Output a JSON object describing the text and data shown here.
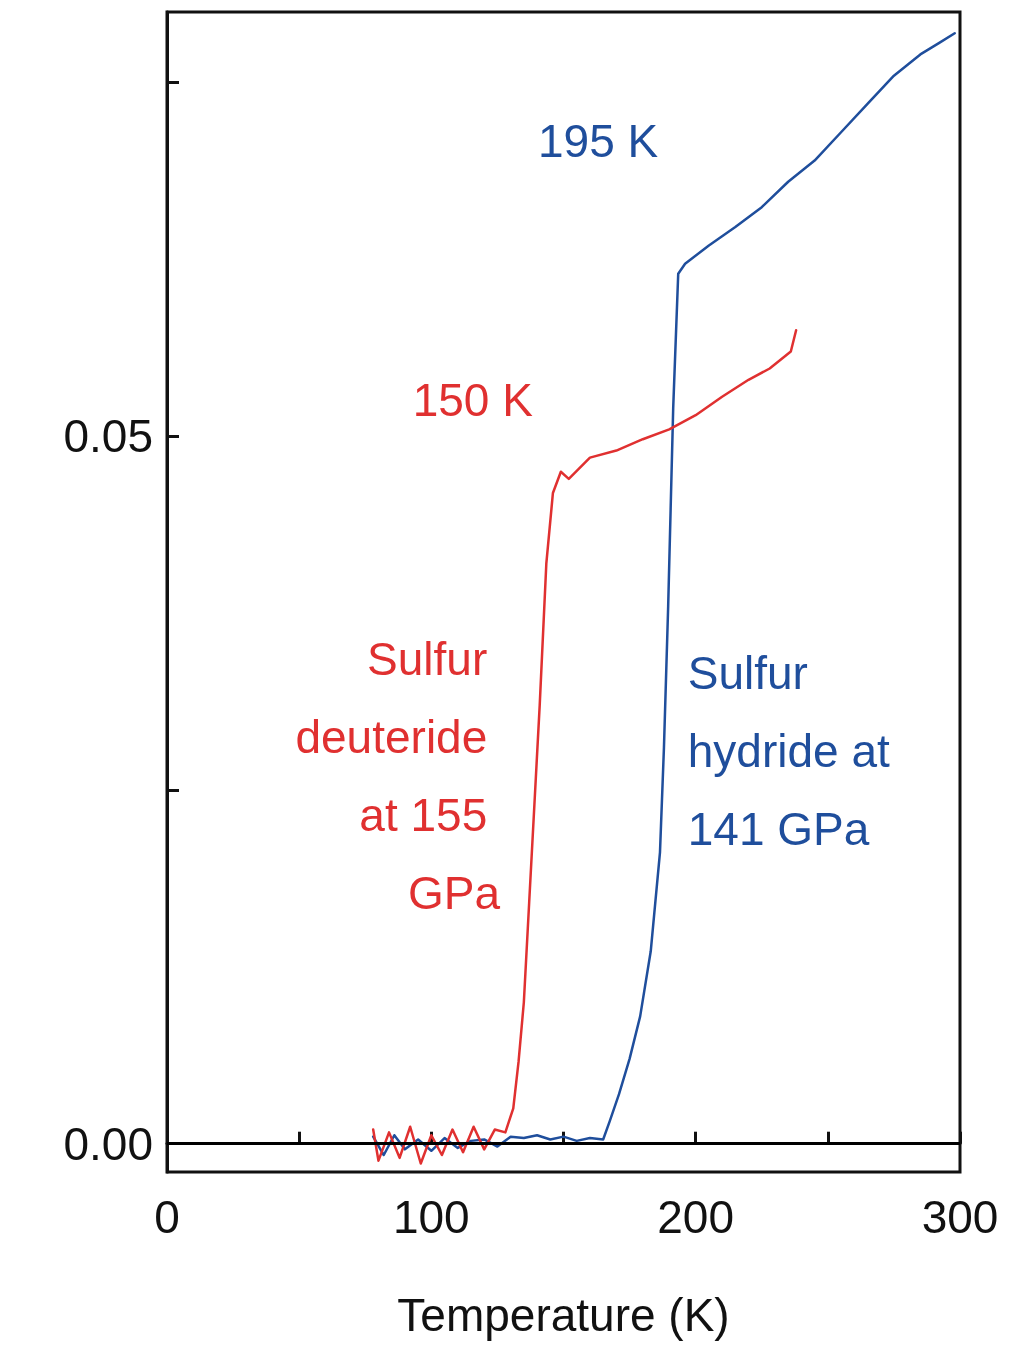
{
  "chart_data": {
    "type": "line",
    "xlabel": "Temperature (K)",
    "xlim": [
      0,
      300
    ],
    "xticks": [
      0,
      {
        "value": 50,
        "label": null
      },
      100,
      {
        "value": 150,
        "label": null
      },
      200,
      {
        "value": 250,
        "label": null
      },
      300
    ],
    "ylim": [
      -0.002,
      0.08
    ],
    "yticks": [
      {
        "value": 0,
        "label": "0.00"
      },
      {
        "value": 0.025,
        "label": null
      },
      {
        "value": 0.05,
        "label": "0.05"
      },
      {
        "value": 0.075,
        "label": null
      }
    ],
    "grid": false,
    "legend": false,
    "marker": "none",
    "line_style": "solid",
    "ref_lines": [
      {
        "axis": "y",
        "value": 0,
        "color": "#000000"
      }
    ],
    "annotations": [
      {
        "text": "195 K",
        "x": 193.4,
        "y": 0.0615
      },
      {
        "text": "150 K",
        "x": 146,
        "y": 0.046
      }
    ],
    "series": [
      {
        "name": "Sulfur hydride at 141 GPa",
        "color": "#1f4e9c",
        "x": [
          78,
          82,
          86,
          90,
          95,
          100,
          105,
          110,
          115,
          120,
          125,
          130,
          135,
          140,
          145,
          150,
          155,
          160,
          165,
          167.5,
          171,
          175,
          179,
          183,
          186.5,
          188,
          189.6,
          191.5,
          193.4,
          196,
          205,
          215,
          225,
          235,
          245,
          255,
          265,
          275,
          285,
          292,
          298
        ],
        "values": [
          0.0005,
          -0.0008,
          0.0006,
          -0.0004,
          0.0003,
          -0.0005,
          0.0004,
          -0.0003,
          0.0002,
          0.0003,
          -0.0002,
          0.0005,
          0.0004,
          0.0006,
          0.0003,
          0.0005,
          0.0002,
          0.0004,
          0.0003,
          0.0016,
          0.0035,
          0.006,
          0.009,
          0.0136,
          0.0206,
          0.028,
          0.038,
          0.052,
          0.0615,
          0.0622,
          0.0635,
          0.0648,
          0.0662,
          0.068,
          0.0695,
          0.0715,
          0.0735,
          0.0755,
          0.077,
          0.0778,
          0.0785
        ]
      },
      {
        "name": "Sulfur deuteride at 155 GPa",
        "color": "#e03030",
        "x": [
          78,
          80,
          84,
          88,
          92,
          96,
          100,
          104,
          108,
          112,
          116,
          120,
          124,
          128,
          131,
          133,
          135,
          137,
          139,
          141,
          143.5,
          146,
          149,
          152,
          160,
          170,
          180,
          190,
          200,
          210,
          220,
          228,
          236,
          238
        ],
        "values": [
          0.001,
          -0.0012,
          0.0008,
          -0.001,
          0.0012,
          -0.0014,
          0.0006,
          -0.0008,
          0.001,
          -0.0006,
          0.0012,
          -0.0004,
          0.001,
          0.0008,
          0.0025,
          0.0058,
          0.01,
          0.017,
          0.024,
          0.031,
          0.041,
          0.046,
          0.0475,
          0.047,
          0.0485,
          0.049,
          0.0498,
          0.0505,
          0.0515,
          0.0528,
          0.054,
          0.0548,
          0.056,
          0.0575
        ]
      }
    ]
  }
}
